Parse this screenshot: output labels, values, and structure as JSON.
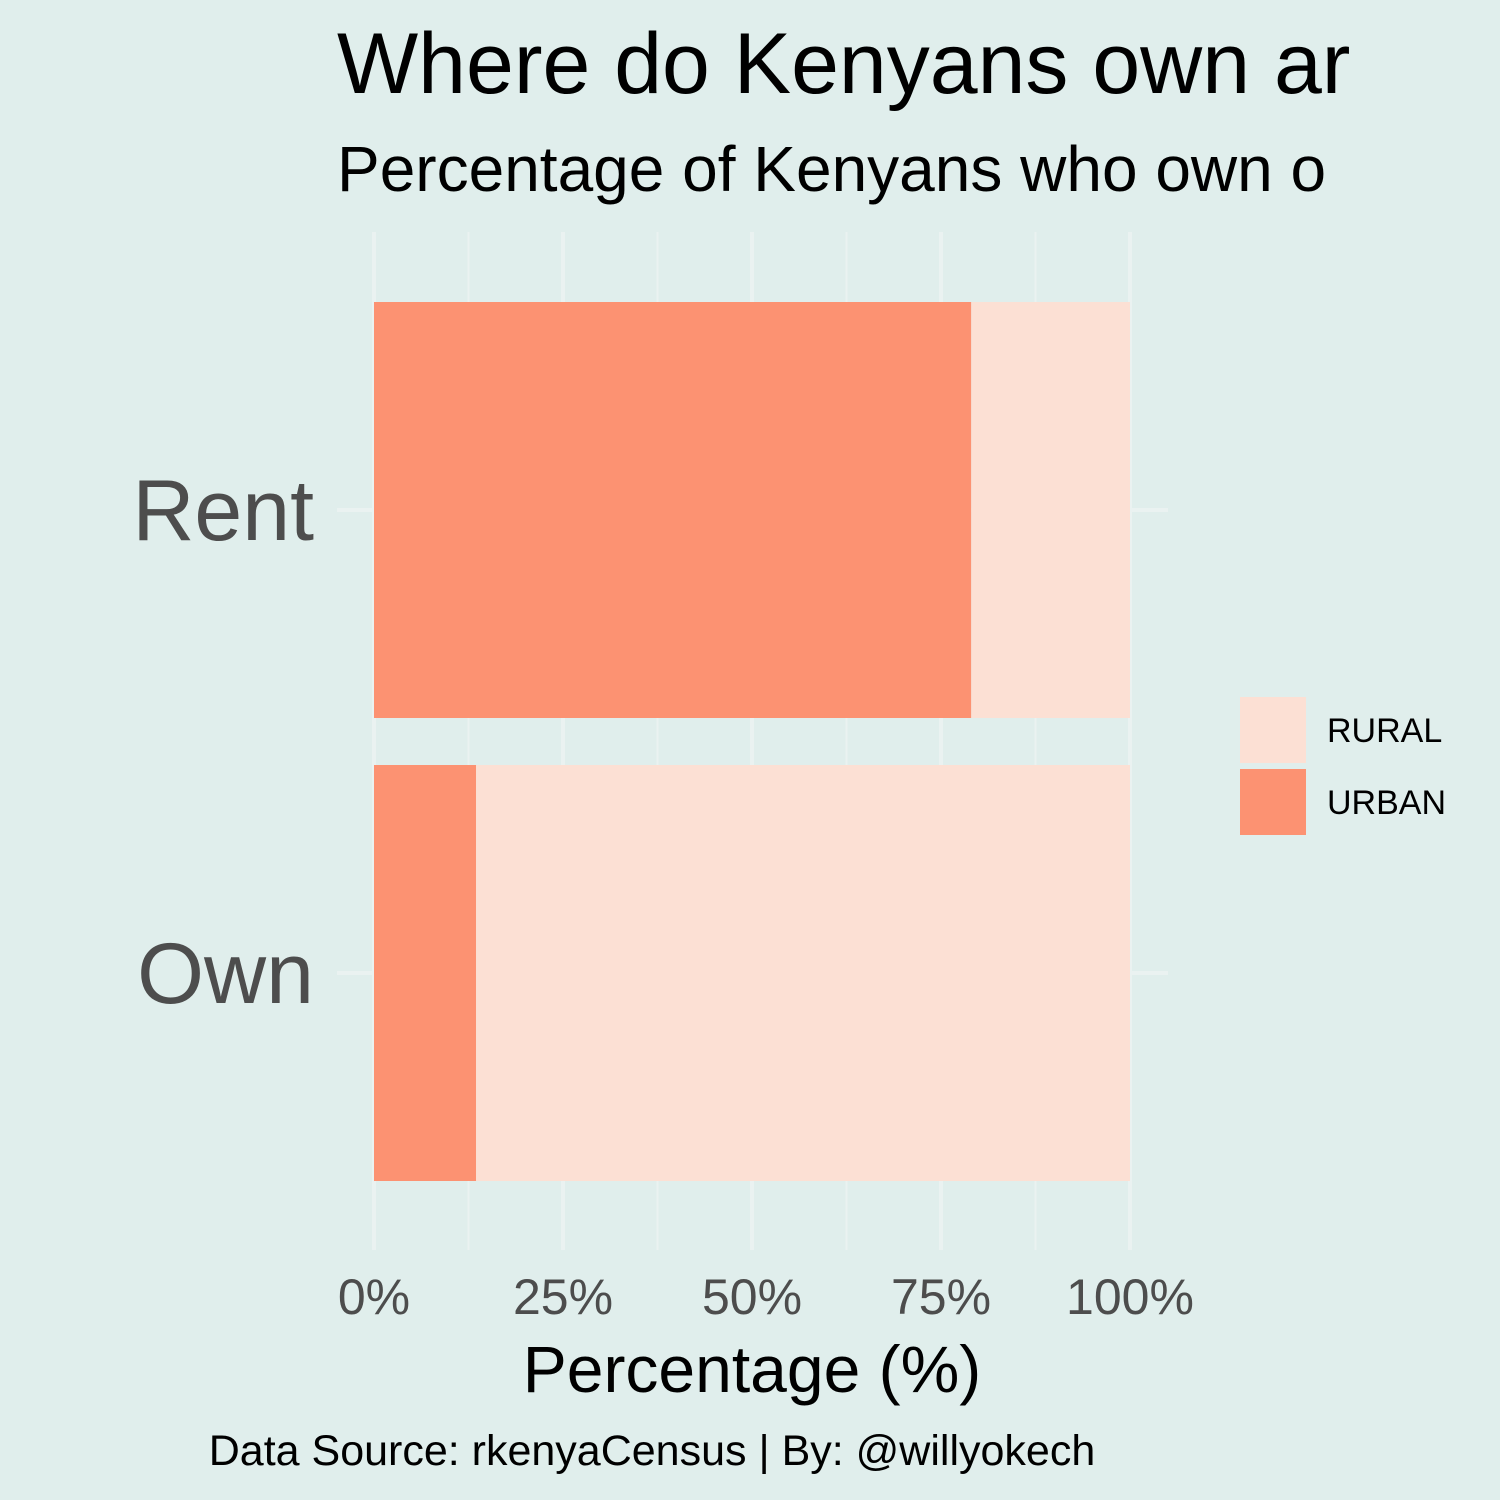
{
  "chart_data": {
    "type": "bar",
    "orientation": "horizontal",
    "stacked": true,
    "title": "Where do Kenyans own ar",
    "subtitle": "Percentage of Kenyans who own o",
    "xlabel": "Percentage (%)",
    "ylabel": "",
    "categories": [
      "Rent",
      "Own"
    ],
    "series": [
      {
        "name": "URBAN",
        "color": "#FC9272",
        "values": [
          79,
          13.5
        ]
      },
      {
        "name": "RURAL",
        "color": "#FCE0D4",
        "values": [
          21,
          86.5
        ]
      }
    ],
    "xlim": [
      0,
      100
    ],
    "xticks": [
      0,
      25,
      50,
      75,
      100
    ],
    "xtick_labels": [
      "0%",
      "25%",
      "50%",
      "75%",
      "100%"
    ],
    "legend": {
      "placement": "right",
      "entries": [
        {
          "label": "RURAL",
          "color": "#FCE0D4"
        },
        {
          "label": "URBAN",
          "color": "#FC9272"
        }
      ]
    },
    "grid": true,
    "caption": "Data Source: rkenyaCensus | By: @willyokech"
  },
  "colors": {
    "background": "#E0EEEC",
    "gridline": "#EAF2F1",
    "urban": "#FC9272",
    "rural": "#FCE0D4",
    "axis_text": "#4D4D4D",
    "title_text": "#000000"
  }
}
